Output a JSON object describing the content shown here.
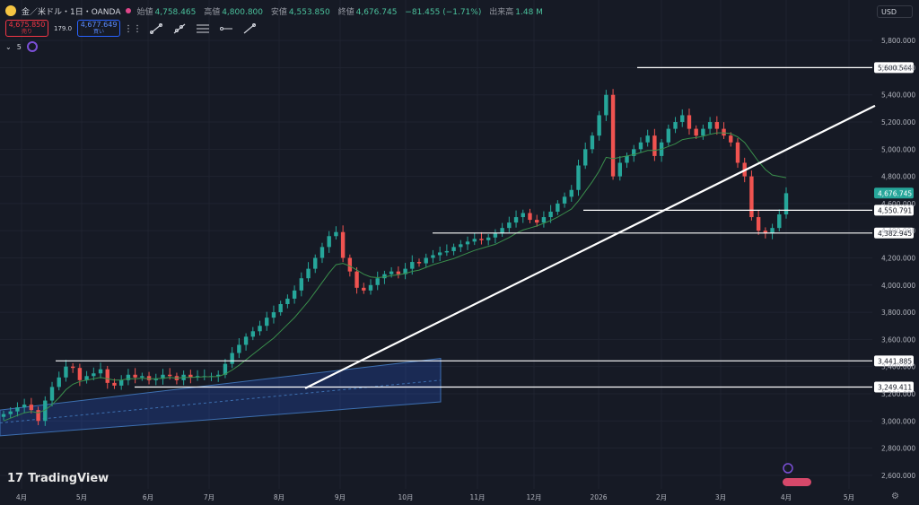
{
  "header": {
    "title": "金／米ドル・1日・OANDA",
    "ohlc": [
      {
        "k": "始値",
        "v": "4,758.465"
      },
      {
        "k": "高値",
        "v": "4,800.800"
      },
      {
        "k": "安値",
        "v": "4,553.850"
      },
      {
        "k": "終値",
        "v": "4,676.745"
      }
    ],
    "change": "−81.455 (−1.71%)",
    "volume_label": "出来高",
    "volume": "1.48 M"
  },
  "trade": {
    "sell_price": "4,675.850",
    "sell_label": "売り",
    "spread": "179.0",
    "buy_price": "4,677.649",
    "buy_label": "買い"
  },
  "indicator_count": "5",
  "currency": "USD",
  "logo": "TradingView",
  "chart_data": {
    "type": "candlestick",
    "symbol": "金／米ドル",
    "interval": "1日",
    "source": "OANDA",
    "ylim": [
      2500,
      5900
    ],
    "y_ticks": [
      "5,800.000",
      "5,600.000",
      "5,400.000",
      "5,200.000",
      "5,000.000",
      "4,800.000",
      "4,600.000",
      "4,400.000",
      "4,200.000",
      "4,000.000",
      "3,800.000",
      "3,600.000",
      "3,400.000",
      "3,200.000",
      "3,000.000",
      "2,800.000",
      "2,600.000"
    ],
    "x_ticks": [
      "4月",
      "5月",
      "6月",
      "7月",
      "8月",
      "9月",
      "10月",
      "11月",
      "12月",
      "2026",
      "2月",
      "3月",
      "4月",
      "5月"
    ],
    "last_price": "4,676.745",
    "horizontal_levels": [
      {
        "label": "5,600.544",
        "value": 5600.544
      },
      {
        "label": "4,550.791",
        "value": 4550.791
      },
      {
        "label": "4,382.945",
        "value": 4382.945
      },
      {
        "label": "3,441.885",
        "value": 3441.885
      },
      {
        "label": "3,249.411",
        "value": 3249.411
      }
    ],
    "trend_line": {
      "from": {
        "date": "8月中旬",
        "price": 3240
      },
      "to": {
        "date": "5月初",
        "price": 5320
      }
    },
    "channel": {
      "from_date": "3月",
      "to_date": "10月中旬",
      "top_start": 3080,
      "top_end": 3460,
      "bottom_start": 2890,
      "bottom_end": 3140
    },
    "series": [
      {
        "name": "close",
        "values": [
          3050,
          3070,
          3100,
          3120,
          3080,
          3000,
          3150,
          3250,
          3320,
          3400,
          3390,
          3300,
          3330,
          3350,
          3380,
          3280,
          3260,
          3300,
          3340,
          3320,
          3330,
          3300,
          3310,
          3340,
          3330,
          3300,
          3340,
          3320,
          3330,
          3330,
          3330,
          3340,
          3420,
          3500,
          3560,
          3620,
          3660,
          3700,
          3760,
          3800,
          3860,
          3900,
          3960,
          4050,
          4120,
          4200,
          4280,
          4360,
          4390,
          4200,
          4100,
          3980,
          3960,
          4000,
          4050,
          4080,
          4100,
          4080,
          4120,
          4170,
          4160,
          4200,
          4220,
          4240,
          4250,
          4280,
          4300,
          4320,
          4340,
          4330,
          4350,
          4380,
          4420,
          4460,
          4500,
          4530,
          4480,
          4460,
          4500,
          4540,
          4600,
          4650,
          4700,
          4880,
          5000,
          5100,
          5250,
          5400,
          4800,
          4900,
          4950,
          5000,
          5050,
          5100,
          4950,
          5050,
          5150,
          5200,
          5250,
          5150,
          5100,
          5150,
          5200,
          5150,
          5100,
          5050,
          4900,
          4800,
          4500,
          4400,
          4380,
          4420,
          4520,
          4676
        ]
      },
      {
        "name": "ma",
        "values": [
          3000,
          3020,
          3040,
          3060,
          3070,
          3060,
          3080,
          3120,
          3170,
          3230,
          3270,
          3290,
          3300,
          3310,
          3320,
          3310,
          3300,
          3300,
          3310,
          3310,
          3315,
          3310,
          3310,
          3315,
          3320,
          3315,
          3320,
          3320,
          3322,
          3325,
          3325,
          3327,
          3345,
          3375,
          3410,
          3450,
          3490,
          3530,
          3570,
          3610,
          3660,
          3710,
          3760,
          3820,
          3880,
          3950,
          4020,
          4090,
          4150,
          4160,
          4140,
          4110,
          4080,
          4060,
          4055,
          4060,
          4070,
          4075,
          4085,
          4100,
          4110,
          4130,
          4150,
          4165,
          4180,
          4195,
          4215,
          4235,
          4255,
          4270,
          4285,
          4300,
          4325,
          4350,
          4380,
          4405,
          4420,
          4435,
          4455,
          4475,
          4500,
          4530,
          4560,
          4620,
          4690,
          4760,
          4840,
          4940,
          4930,
          4940,
          4950,
          4960,
          4975,
          4990,
          4990,
          5000,
          5020,
          5040,
          5070,
          5080,
          5085,
          5095,
          5110,
          5120,
          5120,
          5115,
          5090,
          5050,
          4980,
          4910,
          4850,
          4810,
          4800,
          4790
        ]
      }
    ]
  }
}
